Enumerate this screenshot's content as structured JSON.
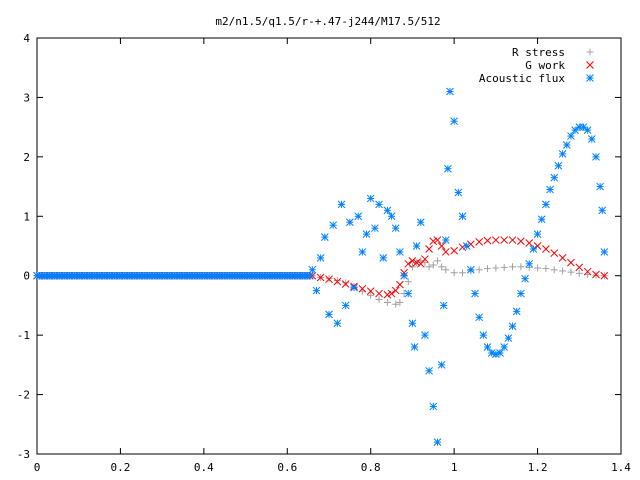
{
  "chart_data": {
    "type": "scatter",
    "title": "m2/n1.5/q1.5/r-+.47-j244/M17.5/512",
    "xlabel": "",
    "ylabel": "",
    "xlim": [
      0,
      1.4
    ],
    "ylim": [
      -3,
      4
    ],
    "x_ticks": [
      "0",
      "0.2",
      "0.4",
      "0.6",
      "0.8",
      "1",
      "1.2",
      "1.4"
    ],
    "y_ticks": [
      "-3",
      "-2",
      "-1",
      "0",
      "1",
      "2",
      "3",
      "4"
    ],
    "grid": false,
    "legend_position": "top-right",
    "series": [
      {
        "name": "R stress",
        "marker": "+",
        "color": "#a0a0a0",
        "points": [
          [
            0.66,
            0.0
          ],
          [
            0.68,
            -0.03
          ],
          [
            0.7,
            -0.05
          ],
          [
            0.72,
            -0.08
          ],
          [
            0.74,
            -0.12
          ],
          [
            0.76,
            -0.18
          ],
          [
            0.78,
            -0.26
          ],
          [
            0.8,
            -0.33
          ],
          [
            0.82,
            -0.4
          ],
          [
            0.84,
            -0.45
          ],
          [
            0.86,
            -0.48
          ],
          [
            0.87,
            -0.45
          ],
          [
            0.88,
            -0.3
          ],
          [
            0.89,
            -0.1
          ],
          [
            0.9,
            0.15
          ],
          [
            0.91,
            0.22
          ],
          [
            0.92,
            0.25
          ],
          [
            0.93,
            0.22
          ],
          [
            0.94,
            0.15
          ],
          [
            0.95,
            0.18
          ],
          [
            0.96,
            0.25
          ],
          [
            0.97,
            0.15
          ],
          [
            0.98,
            0.1
          ],
          [
            1.0,
            0.05
          ],
          [
            1.02,
            0.05
          ],
          [
            1.04,
            0.08
          ],
          [
            1.06,
            0.1
          ],
          [
            1.08,
            0.12
          ],
          [
            1.1,
            0.13
          ],
          [
            1.12,
            0.14
          ],
          [
            1.14,
            0.15
          ],
          [
            1.16,
            0.15
          ],
          [
            1.18,
            0.14
          ],
          [
            1.2,
            0.13
          ],
          [
            1.22,
            0.12
          ],
          [
            1.24,
            0.1
          ],
          [
            1.26,
            0.08
          ],
          [
            1.28,
            0.06
          ],
          [
            1.3,
            0.04
          ],
          [
            1.32,
            0.02
          ],
          [
            1.34,
            0.01
          ],
          [
            1.36,
            0.0
          ]
        ]
      },
      {
        "name": "G work",
        "marker": "x",
        "color": "#ff0000",
        "points": [
          [
            0.66,
            0.0
          ],
          [
            0.68,
            -0.03
          ],
          [
            0.7,
            -0.06
          ],
          [
            0.72,
            -0.1
          ],
          [
            0.74,
            -0.14
          ],
          [
            0.76,
            -0.18
          ],
          [
            0.78,
            -0.22
          ],
          [
            0.8,
            -0.26
          ],
          [
            0.82,
            -0.3
          ],
          [
            0.84,
            -0.32
          ],
          [
            0.85,
            -0.3
          ],
          [
            0.86,
            -0.25
          ],
          [
            0.87,
            -0.15
          ],
          [
            0.88,
            0.05
          ],
          [
            0.89,
            0.2
          ],
          [
            0.9,
            0.25
          ],
          [
            0.91,
            0.22
          ],
          [
            0.92,
            0.2
          ],
          [
            0.93,
            0.28
          ],
          [
            0.94,
            0.45
          ],
          [
            0.95,
            0.58
          ],
          [
            0.96,
            0.6
          ],
          [
            0.97,
            0.5
          ],
          [
            0.98,
            0.4
          ],
          [
            1.0,
            0.42
          ],
          [
            1.02,
            0.48
          ],
          [
            1.04,
            0.53
          ],
          [
            1.06,
            0.57
          ],
          [
            1.08,
            0.59
          ],
          [
            1.1,
            0.6
          ],
          [
            1.12,
            0.6
          ],
          [
            1.14,
            0.6
          ],
          [
            1.16,
            0.58
          ],
          [
            1.18,
            0.55
          ],
          [
            1.2,
            0.5
          ],
          [
            1.22,
            0.45
          ],
          [
            1.24,
            0.38
          ],
          [
            1.26,
            0.3
          ],
          [
            1.28,
            0.22
          ],
          [
            1.3,
            0.14
          ],
          [
            1.32,
            0.07
          ],
          [
            1.34,
            0.02
          ],
          [
            1.36,
            0.0
          ]
        ]
      },
      {
        "name": "Acoustic flux",
        "marker": "*",
        "color": "#0080ff",
        "points": [
          [
            0.66,
            0.1
          ],
          [
            0.67,
            -0.25
          ],
          [
            0.68,
            0.3
          ],
          [
            0.69,
            0.65
          ],
          [
            0.7,
            -0.65
          ],
          [
            0.71,
            0.85
          ],
          [
            0.72,
            -0.8
          ],
          [
            0.73,
            1.2
          ],
          [
            0.74,
            -0.5
          ],
          [
            0.75,
            0.9
          ],
          [
            0.76,
            -0.2
          ],
          [
            0.77,
            1.0
          ],
          [
            0.78,
            0.4
          ],
          [
            0.79,
            0.7
          ],
          [
            0.8,
            1.3
          ],
          [
            0.81,
            0.8
          ],
          [
            0.82,
            1.2
          ],
          [
            0.83,
            0.3
          ],
          [
            0.84,
            1.1
          ],
          [
            0.85,
            1.0
          ],
          [
            0.86,
            0.8
          ],
          [
            0.87,
            0.4
          ],
          [
            0.88,
            0.0
          ],
          [
            0.89,
            -0.3
          ],
          [
            0.9,
            -0.8
          ],
          [
            0.905,
            -1.2
          ],
          [
            0.91,
            0.5
          ],
          [
            0.92,
            0.9
          ],
          [
            0.93,
            -1.0
          ],
          [
            0.94,
            -1.6
          ],
          [
            0.95,
            -2.2
          ],
          [
            0.96,
            -2.8
          ],
          [
            0.97,
            -1.5
          ],
          [
            0.975,
            -0.5
          ],
          [
            0.98,
            0.6
          ],
          [
            0.985,
            1.8
          ],
          [
            0.99,
            3.1
          ],
          [
            1.0,
            2.6
          ],
          [
            1.01,
            1.4
          ],
          [
            1.02,
            1.0
          ],
          [
            1.03,
            0.5
          ],
          [
            1.04,
            0.1
          ],
          [
            1.05,
            -0.3
          ],
          [
            1.06,
            -0.7
          ],
          [
            1.07,
            -1.0
          ],
          [
            1.08,
            -1.2
          ],
          [
            1.09,
            -1.3
          ],
          [
            1.1,
            -1.32
          ],
          [
            1.11,
            -1.3
          ],
          [
            1.12,
            -1.2
          ],
          [
            1.13,
            -1.05
          ],
          [
            1.14,
            -0.85
          ],
          [
            1.15,
            -0.6
          ],
          [
            1.16,
            -0.3
          ],
          [
            1.17,
            -0.05
          ],
          [
            1.18,
            0.2
          ],
          [
            1.19,
            0.45
          ],
          [
            1.2,
            0.7
          ],
          [
            1.21,
            0.95
          ],
          [
            1.22,
            1.2
          ],
          [
            1.23,
            1.45
          ],
          [
            1.24,
            1.65
          ],
          [
            1.25,
            1.85
          ],
          [
            1.26,
            2.05
          ],
          [
            1.27,
            2.2
          ],
          [
            1.28,
            2.35
          ],
          [
            1.29,
            2.45
          ],
          [
            1.3,
            2.5
          ],
          [
            1.31,
            2.5
          ],
          [
            1.32,
            2.45
          ],
          [
            1.33,
            2.3
          ],
          [
            1.34,
            2.0
          ],
          [
            1.35,
            1.5
          ],
          [
            1.355,
            1.1
          ],
          [
            1.36,
            0.4
          ]
        ]
      }
    ]
  }
}
